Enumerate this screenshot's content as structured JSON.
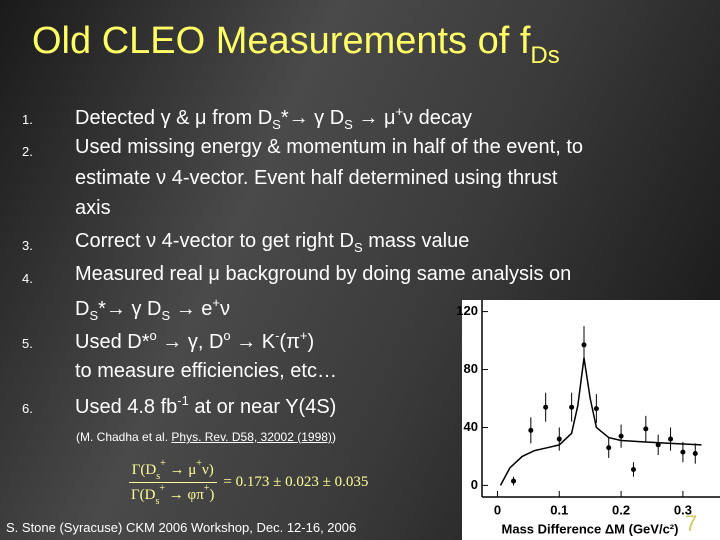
{
  "title": [
    "Old CLEO Measurements of f",
    "Ds"
  ],
  "items": [
    {
      "number": "1.",
      "lines": [
        [
          "Detected γ & μ from D",
          "S",
          "*→ γ D",
          "S",
          " → μ",
          "+",
          "ν decay"
        ]
      ]
    },
    {
      "number": "2.",
      "lines": [
        [
          "Used missing energy & momentum in half of the event, to"
        ],
        [
          "estimate ν 4-vector. Event half determined using thrust"
        ],
        [
          "axis"
        ]
      ]
    },
    {
      "number": "3.",
      "lines": [
        [
          "Correct ν 4-vector to get right D",
          "S",
          " mass value"
        ]
      ]
    },
    {
      "number": "4.",
      "lines": [
        [
          "Measured real μ background by doing same analysis on"
        ],
        [
          "D",
          "S",
          "*→ γ D",
          "S",
          " → e",
          "+",
          "ν"
        ]
      ]
    },
    {
      "number": "5.",
      "lines": [
        [
          "Used D*",
          "o",
          " → γ, D",
          "o",
          " → K",
          "-",
          "(π",
          "+",
          ")"
        ],
        [
          "to measure efficiencies, etc…"
        ]
      ]
    },
    {
      "number": "6.",
      "lines": [
        [
          "Used 4.8 fb",
          "-1",
          " at or near Y(4S)"
        ]
      ]
    }
  ],
  "citation": [
    "(M. Chadha et al. ",
    "Phys. Rev. D58, 32002 (1998)",
    ")"
  ],
  "formula": {
    "numerator": [
      "Γ(D",
      "s",
      "+",
      " → μ",
      "+",
      "ν)"
    ],
    "denominator": [
      "Γ(D",
      "s",
      "+",
      " → φπ",
      "+",
      ")"
    ],
    "result": "= 0.173 ± 0.023 ± 0.035"
  },
  "footer": "S. Stone (Syracuse) CKM 2006 Workshop, Dec. 12-16, 2006",
  "page_number": "7",
  "figure": {
    "type": "scatter",
    "x_label": "Mass Difference ΔM (GeV/c²)",
    "xlim": [
      -0.025,
      0.36
    ],
    "ylim": [
      -8,
      128
    ],
    "xticks": [
      0,
      0.1,
      0.2,
      0.3
    ],
    "yticks": [
      0,
      40,
      80,
      120
    ],
    "x": [
      0.026,
      0.054,
      0.078,
      0.1,
      0.12,
      0.14,
      0.16,
      0.18,
      0.2,
      0.22,
      0.24,
      0.26,
      0.28,
      0.3,
      0.32
    ],
    "values": [
      3,
      38,
      54,
      32,
      54,
      97,
      53,
      26,
      34,
      11,
      39,
      28,
      32,
      23,
      22
    ],
    "errors": [
      3,
      9,
      10,
      8,
      10,
      13,
      10,
      7,
      8,
      5,
      9,
      7,
      8,
      7,
      7
    ],
    "curve": {
      "x": [
        0.005,
        0.02,
        0.04,
        0.06,
        0.08,
        0.1,
        0.12,
        0.13,
        0.14,
        0.15,
        0.16,
        0.18,
        0.2,
        0.24,
        0.28,
        0.33
      ],
      "y": [
        0,
        12,
        20,
        24,
        26,
        28,
        36,
        55,
        88,
        60,
        40,
        33,
        31,
        30,
        29,
        28
      ]
    }
  }
}
